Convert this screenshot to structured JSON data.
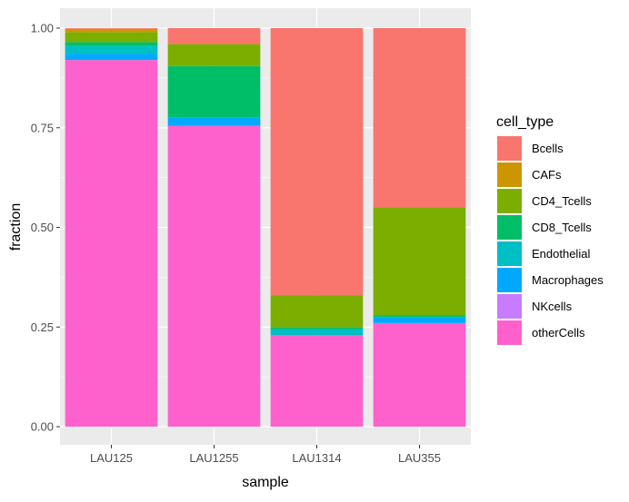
{
  "chart_data": {
    "type": "bar",
    "stacked": true,
    "xlabel": "sample",
    "ylabel": "fraction",
    "ylim": [
      0,
      1
    ],
    "y_ticks": [
      "0.00",
      "0.25",
      "0.50",
      "0.75",
      "1.00"
    ],
    "y_tick_values": [
      0,
      0.25,
      0.5,
      0.75,
      1.0
    ],
    "grid": true,
    "legend_position": "right",
    "legend_title": "cell_type",
    "categories": [
      "LAU125",
      "LAU1255",
      "LAU1314",
      "LAU355"
    ],
    "series": [
      {
        "name": "Bcells",
        "color": "#F8766D",
        "values": [
          0.002,
          0.04,
          0.67,
          0.45
        ]
      },
      {
        "name": "CAFs",
        "color": "#CD9600",
        "values": [
          0.008,
          0.0,
          0.0,
          0.0
        ]
      },
      {
        "name": "CD4_Tcells",
        "color": "#7CAE00",
        "values": [
          0.025,
          0.055,
          0.08,
          0.27
        ]
      },
      {
        "name": "CD8_Tcells",
        "color": "#00BE67",
        "values": [
          0.01,
          0.13,
          0.005,
          0.005
        ]
      },
      {
        "name": "Endothelial",
        "color": "#00BFC4",
        "values": [
          0.02,
          0.0,
          0.015,
          0.0
        ]
      },
      {
        "name": "Macrophages",
        "color": "#00A9FF",
        "values": [
          0.015,
          0.02,
          0.0,
          0.015
        ]
      },
      {
        "name": "NKcells",
        "color": "#C77CFF",
        "values": [
          0.0,
          0.0,
          0.0,
          0.0
        ]
      },
      {
        "name": "otherCells",
        "color": "#FF61CC",
        "values": [
          0.92,
          0.755,
          0.23,
          0.26
        ]
      }
    ]
  }
}
